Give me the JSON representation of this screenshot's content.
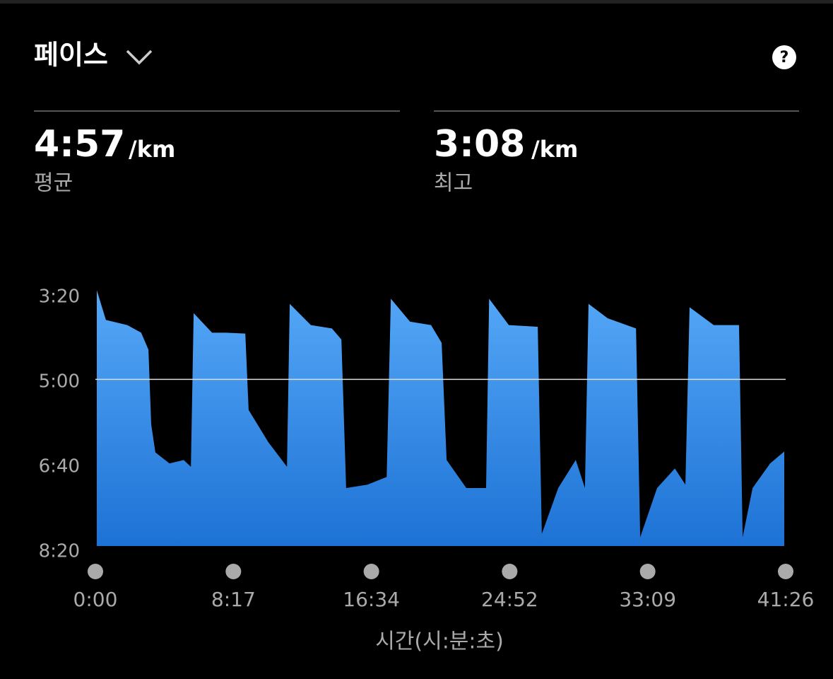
{
  "header": {
    "title": "페이스",
    "help": "?"
  },
  "stats": [
    {
      "value": "4:57",
      "unit": "/km",
      "label": "평균"
    },
    {
      "value": "3:08",
      "unit": "/km",
      "label": "최고"
    }
  ],
  "chart_data": {
    "type": "area",
    "x_label": "시간(시:분:초)",
    "color": "#3d95f0",
    "x": [
      5,
      38,
      115,
      165,
      191,
      201,
      216,
      267,
      318,
      344,
      354,
      420,
      471,
      540,
      552,
      623,
      690,
      700,
      776,
      852,
      886,
      903,
      980,
      1049,
      1064,
      1133,
      1209,
      1247,
      1265,
      1336,
      1407,
      1418,
      1489,
      1593,
      1608,
      1667,
      1730,
      1763,
      1776,
      1845,
      1947,
      1962,
      2023,
      2087,
      2125,
      2140,
      2227,
      2318,
      2331,
      2367,
      2430,
      2481
    ],
    "values": [
      192,
      227,
      233,
      242,
      262,
      350,
      383,
      396,
      392,
      400,
      219,
      242,
      242,
      243,
      333,
      371,
      400,
      208,
      233,
      237,
      250,
      425,
      421,
      412,
      202,
      229,
      233,
      254,
      392,
      425,
      425,
      202,
      233,
      235,
      479,
      425,
      392,
      425,
      208,
      225,
      237,
      483,
      425,
      402,
      421,
      212,
      233,
      233,
      483,
      425,
      396,
      382
    ],
    "average_line": 297,
    "xlim": [
      0,
      2486
    ],
    "ylim": [
      500,
      190
    ],
    "xticks": [
      {
        "value": 0,
        "label": "0:00"
      },
      {
        "value": 497,
        "label": "8:17"
      },
      {
        "value": 994,
        "label": "16:34"
      },
      {
        "value": 1492,
        "label": "24:52"
      },
      {
        "value": 1989,
        "label": "33:09"
      },
      {
        "value": 2486,
        "label": "41:26"
      }
    ],
    "yticks": [
      {
        "value": 200,
        "label": "3:20"
      },
      {
        "value": 300,
        "label": "5:00"
      },
      {
        "value": 400,
        "label": "6:40"
      },
      {
        "value": 500,
        "label": "8:20"
      }
    ]
  }
}
